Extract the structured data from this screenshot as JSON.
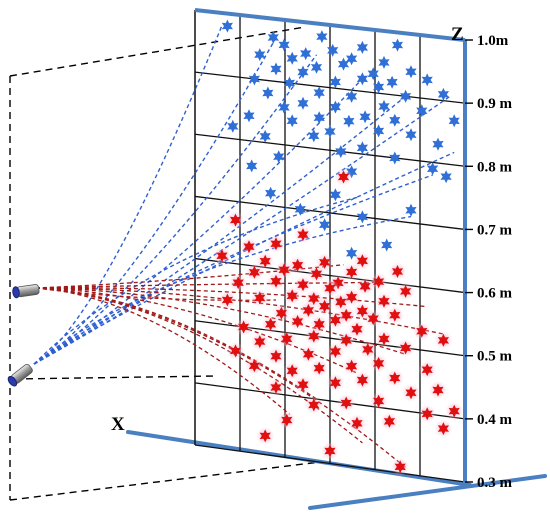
{
  "axes": {
    "x_label": "X",
    "z_label": "Z"
  },
  "z_ticks": [
    "1.0m",
    "0.9 m",
    "0.8 m",
    "0.7 m",
    "0.6 m",
    "0.5 m",
    "0.4 m",
    "0.3 m"
  ],
  "colors": {
    "frame_blue": "#4a7fc1",
    "grid": "#111111",
    "blue_star": "#2f6fd6",
    "red_star": "#e01010",
    "red_glow": "#f4b8d0",
    "blue_trajectory": "#2f5fd0",
    "red_trajectory": "#a01818",
    "projection_lines": "#000000"
  },
  "chart_data": {
    "type": "scatter",
    "nozzle_heights_m": [
      0.6,
      0.5
    ],
    "series": [
      {
        "color": "#2f6fd6",
        "points": [
          [
            0.12,
            0.98
          ],
          [
            0.29,
            0.97
          ],
          [
            0.47,
            0.98
          ],
          [
            0.62,
            0.97
          ],
          [
            0.75,
            0.98
          ],
          [
            0.33,
            0.96
          ],
          [
            0.51,
            0.96
          ],
          [
            0.41,
            0.95
          ],
          [
            0.58,
            0.95
          ],
          [
            0.7,
            0.95
          ],
          [
            0.24,
            0.94
          ],
          [
            0.36,
            0.94
          ],
          [
            0.55,
            0.94
          ],
          [
            0.66,
            0.93
          ],
          [
            0.8,
            0.94
          ],
          [
            0.45,
            0.93
          ],
          [
            0.62,
            0.92
          ],
          [
            0.73,
            0.92
          ],
          [
            0.86,
            0.93
          ],
          [
            0.3,
            0.92
          ],
          [
            0.4,
            0.92
          ],
          [
            0.52,
            0.91
          ],
          [
            0.68,
            0.91
          ],
          [
            0.78,
            0.9
          ],
          [
            0.92,
            0.91
          ],
          [
            0.22,
            0.9
          ],
          [
            0.35,
            0.9
          ],
          [
            0.46,
            0.89
          ],
          [
            0.58,
            0.89
          ],
          [
            0.7,
            0.88
          ],
          [
            0.84,
            0.88
          ],
          [
            0.27,
            0.88
          ],
          [
            0.4,
            0.87
          ],
          [
            0.52,
            0.87
          ],
          [
            0.63,
            0.86
          ],
          [
            0.74,
            0.86
          ],
          [
            0.96,
            0.87
          ],
          [
            0.33,
            0.86
          ],
          [
            0.46,
            0.85
          ],
          [
            0.57,
            0.85
          ],
          [
            0.68,
            0.84
          ],
          [
            0.8,
            0.84
          ],
          [
            0.2,
            0.84
          ],
          [
            0.36,
            0.84
          ],
          [
            0.5,
            0.83
          ],
          [
            0.9,
            0.83
          ],
          [
            0.14,
            0.82
          ],
          [
            0.44,
            0.82
          ],
          [
            0.62,
            0.81
          ],
          [
            0.74,
            0.8
          ],
          [
            0.88,
            0.79
          ],
          [
            0.26,
            0.81
          ],
          [
            0.54,
            0.8
          ],
          [
            0.93,
            0.78
          ],
          [
            0.31,
            0.78
          ],
          [
            0.58,
            0.77
          ],
          [
            0.21,
            0.76
          ],
          [
            0.52,
            0.73
          ],
          [
            0.8,
            0.72
          ],
          [
            0.39,
            0.7
          ],
          [
            0.62,
            0.7
          ],
          [
            0.28,
            0.72
          ],
          [
            0.48,
            0.68
          ],
          [
            0.71,
            0.66
          ],
          [
            0.58,
            0.64
          ]
        ]
      },
      {
        "color": "#e01010",
        "points": [
          [
            0.55,
            0.76
          ],
          [
            0.15,
            0.67
          ],
          [
            0.4,
            0.66
          ],
          [
            0.3,
            0.64
          ],
          [
            0.62,
            0.63
          ],
          [
            0.2,
            0.63
          ],
          [
            0.48,
            0.62
          ],
          [
            0.75,
            0.62
          ],
          [
            0.26,
            0.61
          ],
          [
            0.38,
            0.61
          ],
          [
            0.58,
            0.61
          ],
          [
            0.68,
            0.6
          ],
          [
            0.1,
            0.61
          ],
          [
            0.33,
            0.6
          ],
          [
            0.45,
            0.6
          ],
          [
            0.53,
            0.59
          ],
          [
            0.22,
            0.59
          ],
          [
            0.63,
            0.59
          ],
          [
            0.78,
            0.59
          ],
          [
            0.4,
            0.58
          ],
          [
            0.5,
            0.58
          ],
          [
            0.3,
            0.58
          ],
          [
            0.58,
            0.57
          ],
          [
            0.7,
            0.57
          ],
          [
            0.16,
            0.57
          ],
          [
            0.44,
            0.56
          ],
          [
            0.54,
            0.56
          ],
          [
            0.36,
            0.56
          ],
          [
            0.62,
            0.55
          ],
          [
            0.24,
            0.55
          ],
          [
            0.48,
            0.55
          ],
          [
            0.74,
            0.55
          ],
          [
            0.56,
            0.54
          ],
          [
            0.42,
            0.54
          ],
          [
            0.66,
            0.54
          ],
          [
            0.12,
            0.54
          ],
          [
            0.32,
            0.53
          ],
          [
            0.52,
            0.53
          ],
          [
            0.6,
            0.52
          ],
          [
            0.84,
            0.53
          ],
          [
            0.46,
            0.52
          ],
          [
            0.38,
            0.52
          ],
          [
            0.7,
            0.51
          ],
          [
            0.28,
            0.51
          ],
          [
            0.56,
            0.5
          ],
          [
            0.18,
            0.5
          ],
          [
            0.44,
            0.5
          ],
          [
            0.64,
            0.49
          ],
          [
            0.78,
            0.5
          ],
          [
            0.92,
            0.52
          ],
          [
            0.34,
            0.49
          ],
          [
            0.52,
            0.48
          ],
          [
            0.24,
            0.48
          ],
          [
            0.68,
            0.47
          ],
          [
            0.42,
            0.47
          ],
          [
            0.86,
            0.47
          ],
          [
            0.3,
            0.46
          ],
          [
            0.58,
            0.46
          ],
          [
            0.15,
            0.46
          ],
          [
            0.74,
            0.45
          ],
          [
            0.46,
            0.45
          ],
          [
            0.36,
            0.44
          ],
          [
            0.62,
            0.44
          ],
          [
            0.9,
            0.44
          ],
          [
            0.22,
            0.44
          ],
          [
            0.52,
            0.43
          ],
          [
            0.8,
            0.43
          ],
          [
            0.4,
            0.42
          ],
          [
            0.68,
            0.41
          ],
          [
            0.96,
            0.41
          ],
          [
            0.3,
            0.41
          ],
          [
            0.56,
            0.4
          ],
          [
            0.86,
            0.4
          ],
          [
            0.44,
            0.39
          ],
          [
            0.72,
            0.38
          ],
          [
            0.6,
            0.37
          ],
          [
            0.92,
            0.38
          ],
          [
            0.34,
            0.36
          ],
          [
            0.26,
            0.33
          ],
          [
            0.5,
            0.32
          ],
          [
            0.76,
            0.31
          ]
        ]
      }
    ]
  }
}
